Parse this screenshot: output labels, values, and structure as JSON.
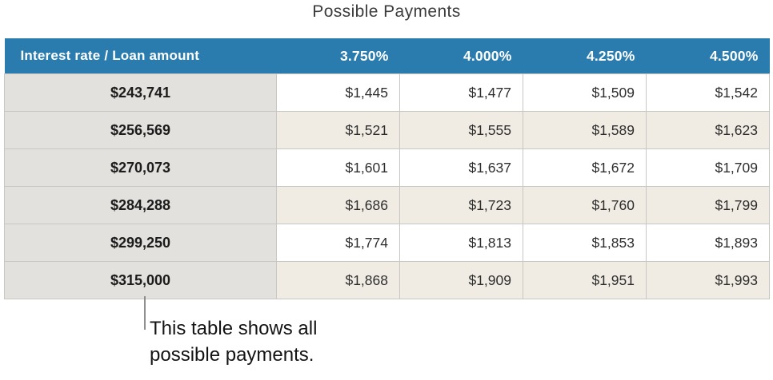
{
  "title": "Possible Payments",
  "table": {
    "corner_header": "Interest rate / Loan amount",
    "rate_headers": [
      "3.750%",
      "4.000%",
      "4.250%",
      "4.500%"
    ],
    "rows": [
      {
        "loan": "$243,741",
        "payments": [
          "$1,445",
          "$1,477",
          "$1,509",
          "$1,542"
        ]
      },
      {
        "loan": "$256,569",
        "payments": [
          "$1,521",
          "$1,555",
          "$1,589",
          "$1,623"
        ]
      },
      {
        "loan": "$270,073",
        "payments": [
          "$1,601",
          "$1,637",
          "$1,672",
          "$1,709"
        ]
      },
      {
        "loan": "$284,288",
        "payments": [
          "$1,686",
          "$1,723",
          "$1,760",
          "$1,799"
        ]
      },
      {
        "loan": "$299,250",
        "payments": [
          "$1,774",
          "$1,813",
          "$1,853",
          "$1,893"
        ]
      },
      {
        "loan": "$315,000",
        "payments": [
          "$1,868",
          "$1,909",
          "$1,951",
          "$1,993"
        ]
      }
    ]
  },
  "callout": {
    "text": "This table shows all\npossible payments."
  },
  "colors": {
    "header_background": "#2b7cae",
    "header_text": "#ffffff",
    "loan_column_background": "#e3e1dd",
    "row_alt_background": "#f0ece3",
    "row_background": "#ffffff",
    "cell_border": "#c9c7c3",
    "callout_line": "#8f8f8f",
    "title_text": "#3c3c3c",
    "body_text": "#2e2e2e"
  }
}
